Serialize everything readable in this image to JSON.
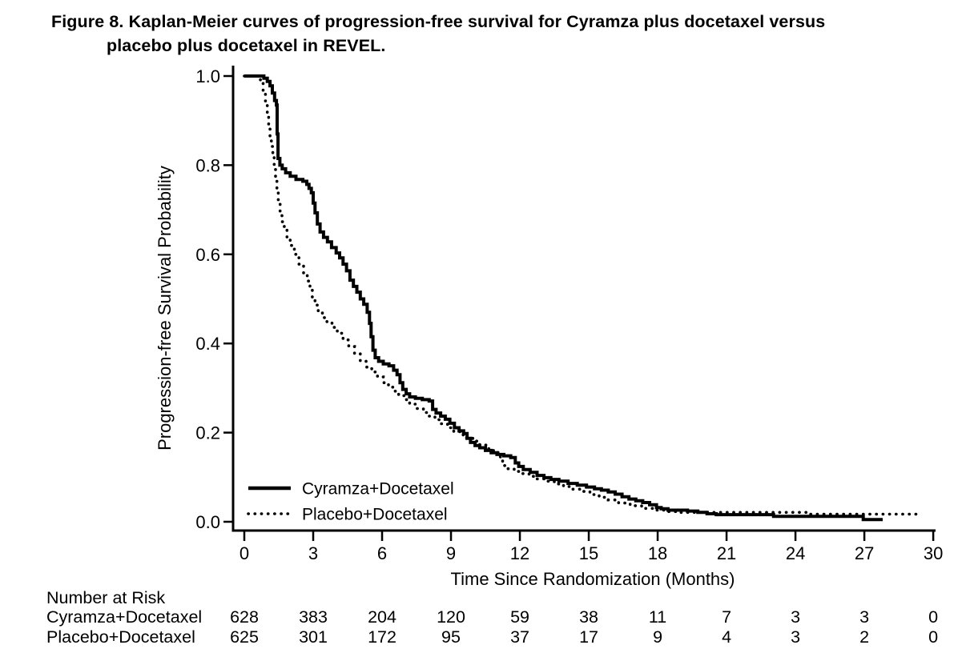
{
  "figure": {
    "title_line1": "Figure 8. Kaplan-Meier curves of progression-free survival for Cyramza plus docetaxel versus",
    "title_line2": "placebo plus docetaxel in REVEL."
  },
  "chart_data": {
    "type": "line",
    "subtype": "kaplan-meier-step",
    "title": "",
    "xlabel": "Time Since Randomization (Months)",
    "ylabel": "Progression-free Survival Probability",
    "xlim": [
      0,
      30
    ],
    "ylim": [
      0.0,
      1.0
    ],
    "x_ticks": [
      0,
      3,
      6,
      9,
      12,
      15,
      18,
      21,
      24,
      27,
      30
    ],
    "y_ticks": [
      0.0,
      0.2,
      0.4,
      0.6,
      0.8,
      1.0
    ],
    "y_tick_labels": [
      "0.0",
      "0.2",
      "0.4",
      "0.6",
      "0.8",
      "1.0"
    ],
    "grid": false,
    "legend_position": "inside-lower-left",
    "line_color": "#000000",
    "series": [
      {
        "name": "Cyramza+Docetaxel",
        "line_style": "solid",
        "points": [
          [
            0,
            1.0
          ],
          [
            0.72,
            1.0
          ],
          [
            0.85,
            0.995
          ],
          [
            1.0,
            0.988
          ],
          [
            1.12,
            0.978
          ],
          [
            1.22,
            0.962
          ],
          [
            1.32,
            0.945
          ],
          [
            1.4,
            0.935
          ],
          [
            1.43,
            0.87
          ],
          [
            1.47,
            0.815
          ],
          [
            1.55,
            0.8
          ],
          [
            1.65,
            0.792
          ],
          [
            1.8,
            0.783
          ],
          [
            2.0,
            0.775
          ],
          [
            2.25,
            0.768
          ],
          [
            2.55,
            0.764
          ],
          [
            2.72,
            0.757
          ],
          [
            2.82,
            0.748
          ],
          [
            2.92,
            0.738
          ],
          [
            3.0,
            0.715
          ],
          [
            3.08,
            0.693
          ],
          [
            3.18,
            0.668
          ],
          [
            3.3,
            0.65
          ],
          [
            3.45,
            0.638
          ],
          [
            3.62,
            0.628
          ],
          [
            3.8,
            0.615
          ],
          [
            4.0,
            0.603
          ],
          [
            4.15,
            0.592
          ],
          [
            4.3,
            0.578
          ],
          [
            4.45,
            0.563
          ],
          [
            4.6,
            0.542
          ],
          [
            4.75,
            0.528
          ],
          [
            4.9,
            0.515
          ],
          [
            5.05,
            0.5
          ],
          [
            5.2,
            0.488
          ],
          [
            5.35,
            0.47
          ],
          [
            5.45,
            0.445
          ],
          [
            5.52,
            0.415
          ],
          [
            5.6,
            0.385
          ],
          [
            5.7,
            0.368
          ],
          [
            5.85,
            0.36
          ],
          [
            6.05,
            0.354
          ],
          [
            6.3,
            0.35
          ],
          [
            6.5,
            0.34
          ],
          [
            6.65,
            0.33
          ],
          [
            6.78,
            0.312
          ],
          [
            6.9,
            0.297
          ],
          [
            7.05,
            0.287
          ],
          [
            7.2,
            0.28
          ],
          [
            7.45,
            0.277
          ],
          [
            7.75,
            0.274
          ],
          [
            8.05,
            0.271
          ],
          [
            8.2,
            0.252
          ],
          [
            8.35,
            0.244
          ],
          [
            8.55,
            0.237
          ],
          [
            8.75,
            0.23
          ],
          [
            8.95,
            0.221
          ],
          [
            9.15,
            0.211
          ],
          [
            9.35,
            0.204
          ],
          [
            9.55,
            0.198
          ],
          [
            9.7,
            0.187
          ],
          [
            9.85,
            0.178
          ],
          [
            10.05,
            0.171
          ],
          [
            10.25,
            0.166
          ],
          [
            10.5,
            0.16
          ],
          [
            10.75,
            0.155
          ],
          [
            11.0,
            0.151
          ],
          [
            11.3,
            0.148
          ],
          [
            11.6,
            0.144
          ],
          [
            11.8,
            0.132
          ],
          [
            11.95,
            0.124
          ],
          [
            12.15,
            0.117
          ],
          [
            12.45,
            0.111
          ],
          [
            12.75,
            0.104
          ],
          [
            13.05,
            0.099
          ],
          [
            13.35,
            0.095
          ],
          [
            13.7,
            0.091
          ],
          [
            14.1,
            0.086
          ],
          [
            14.5,
            0.082
          ],
          [
            14.9,
            0.078
          ],
          [
            15.25,
            0.074
          ],
          [
            15.55,
            0.071
          ],
          [
            15.85,
            0.067
          ],
          [
            16.15,
            0.062
          ],
          [
            16.45,
            0.056
          ],
          [
            16.75,
            0.051
          ],
          [
            17.05,
            0.047
          ],
          [
            17.35,
            0.043
          ],
          [
            17.65,
            0.038
          ],
          [
            17.95,
            0.032
          ],
          [
            18.15,
            0.029
          ],
          [
            18.45,
            0.026
          ],
          [
            19.3,
            0.024
          ],
          [
            19.75,
            0.021
          ],
          [
            20.15,
            0.018
          ],
          [
            20.55,
            0.016
          ],
          [
            22.95,
            0.016
          ],
          [
            23.05,
            0.012
          ],
          [
            26.85,
            0.012
          ],
          [
            26.95,
            0.005
          ],
          [
            27.8,
            0.005
          ]
        ]
      },
      {
        "name": "Placebo+Docetaxel",
        "line_style": "dotted",
        "points": [
          [
            0,
            1.0
          ],
          [
            0.55,
            1.0
          ],
          [
            0.7,
            0.985
          ],
          [
            0.82,
            0.96
          ],
          [
            0.92,
            0.935
          ],
          [
            1.0,
            0.91
          ],
          [
            1.06,
            0.888
          ],
          [
            1.12,
            0.865
          ],
          [
            1.18,
            0.842
          ],
          [
            1.24,
            0.818
          ],
          [
            1.3,
            0.793
          ],
          [
            1.36,
            0.768
          ],
          [
            1.42,
            0.742
          ],
          [
            1.48,
            0.718
          ],
          [
            1.56,
            0.695
          ],
          [
            1.64,
            0.673
          ],
          [
            1.74,
            0.655
          ],
          [
            1.86,
            0.638
          ],
          [
            2.0,
            0.62
          ],
          [
            2.18,
            0.6
          ],
          [
            2.38,
            0.578
          ],
          [
            2.58,
            0.558
          ],
          [
            2.74,
            0.54
          ],
          [
            2.86,
            0.52
          ],
          [
            2.96,
            0.5
          ],
          [
            3.08,
            0.486
          ],
          [
            3.22,
            0.473
          ],
          [
            3.4,
            0.458
          ],
          [
            3.6,
            0.446
          ],
          [
            3.82,
            0.436
          ],
          [
            4.05,
            0.423
          ],
          [
            4.3,
            0.408
          ],
          [
            4.55,
            0.393
          ],
          [
            4.8,
            0.377
          ],
          [
            5.05,
            0.361
          ],
          [
            5.3,
            0.347
          ],
          [
            5.55,
            0.336
          ],
          [
            5.8,
            0.325
          ],
          [
            6.05,
            0.312
          ],
          [
            6.28,
            0.302
          ],
          [
            6.5,
            0.293
          ],
          [
            6.72,
            0.283
          ],
          [
            6.95,
            0.274
          ],
          [
            7.2,
            0.264
          ],
          [
            7.5,
            0.254
          ],
          [
            7.8,
            0.245
          ],
          [
            8.05,
            0.237
          ],
          [
            8.3,
            0.229
          ],
          [
            8.58,
            0.22
          ],
          [
            8.85,
            0.211
          ],
          [
            9.12,
            0.202
          ],
          [
            9.4,
            0.195
          ],
          [
            9.68,
            0.188
          ],
          [
            9.95,
            0.181
          ],
          [
            10.25,
            0.172
          ],
          [
            10.55,
            0.164
          ],
          [
            10.85,
            0.158
          ],
          [
            11.05,
            0.15
          ],
          [
            11.15,
            0.138
          ],
          [
            11.25,
            0.126
          ],
          [
            11.45,
            0.119
          ],
          [
            11.75,
            0.113
          ],
          [
            12.05,
            0.108
          ],
          [
            12.4,
            0.102
          ],
          [
            12.75,
            0.096
          ],
          [
            13.1,
            0.091
          ],
          [
            13.5,
            0.085
          ],
          [
            13.9,
            0.079
          ],
          [
            14.3,
            0.073
          ],
          [
            14.7,
            0.068
          ],
          [
            15.05,
            0.061
          ],
          [
            15.45,
            0.055
          ],
          [
            15.85,
            0.049
          ],
          [
            16.3,
            0.042
          ],
          [
            16.8,
            0.036
          ],
          [
            17.3,
            0.03
          ],
          [
            17.8,
            0.026
          ],
          [
            18.3,
            0.023
          ],
          [
            18.8,
            0.021
          ],
          [
            24.3,
            0.021
          ],
          [
            24.5,
            0.017
          ],
          [
            29.5,
            0.017
          ]
        ]
      }
    ]
  },
  "risk_table": {
    "heading": "Number at Risk",
    "time_points": [
      0,
      3,
      6,
      9,
      12,
      15,
      18,
      21,
      24,
      27,
      30
    ],
    "rows": [
      {
        "name": "Cyramza+Docetaxel",
        "counts": [
          "628",
          "383",
          "204",
          "120",
          "59",
          "38",
          "11",
          "7",
          "3",
          "3",
          "0"
        ]
      },
      {
        "name": "Placebo+Docetaxel",
        "counts": [
          "625",
          "301",
          "172",
          "95",
          "37",
          "17",
          "9",
          "4",
          "3",
          "2",
          "0"
        ]
      }
    ]
  },
  "colors": {
    "foreground": "#000000",
    "background": "#ffffff"
  }
}
